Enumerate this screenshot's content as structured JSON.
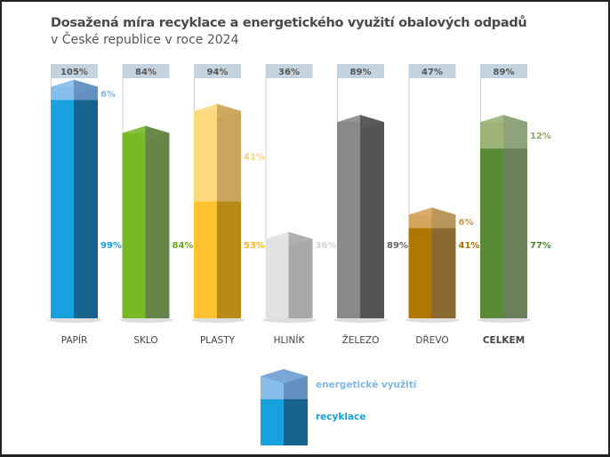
{
  "chart_data": {
    "type": "bar",
    "stacked": true,
    "title": "Dosažená míra recyklace a energetického využití obalových odpadů",
    "subtitle": "v České republice v roce 2024",
    "categories": [
      "PAPÍR",
      "SKLO",
      "PLASTY",
      "HLINÍK",
      "ŽELEZO",
      "DŘEVO",
      "CELKEM"
    ],
    "totals": [
      "105%",
      "84%",
      "94%",
      "36%",
      "89%",
      "47%",
      "89%"
    ],
    "series": [
      {
        "name": "recyklace",
        "values": [
          99,
          84,
          53,
          36,
          89,
          41,
          77
        ]
      },
      {
        "name": "energetické využití",
        "values": [
          6,
          0,
          41,
          0,
          0,
          6,
          12
        ]
      }
    ],
    "colors": [
      {
        "front": "#17a2df",
        "side": "#15638e",
        "efront": "#86bde9",
        "eside": "#6490bf",
        "text": "#1a9ed8",
        "etext": "#7fb6e2"
      },
      {
        "front": "#78b928",
        "side": "#66844a",
        "efront": "#a6cf6e",
        "eside": "#8aa070",
        "text": "#6aa824",
        "etext": "#8fbf55"
      },
      {
        "front": "#fdc32e",
        "side": "#b98a17",
        "efront": "#fed87c",
        "eside": "#c9a45a",
        "text": "#f5b81e",
        "etext": "#f8d27a"
      },
      {
        "front": "#e2e2e2",
        "side": "#a8a8a8",
        "efront": "#eeeeee",
        "eside": "#c0c0c0",
        "text": "#d2d2d2",
        "etext": "#dddddd"
      },
      {
        "front": "#898989",
        "side": "#545454",
        "efront": "#aaaaaa",
        "eside": "#777777",
        "text": "#666666",
        "etext": "#888888"
      },
      {
        "front": "#b07700",
        "side": "#8a6a30",
        "efront": "#d4a55c",
        "eside": "#b8965c",
        "text": "#a87200",
        "etext": "#c9974c"
      },
      {
        "front": "#578b38",
        "side": "#6a7f5a",
        "efront": "#9db276",
        "eside": "#8ea27c",
        "text": "#4f7f2f",
        "etext": "#8fa66a"
      }
    ],
    "ylim": [
      0,
      105
    ]
  },
  "legend": {
    "energy": "energetické využití",
    "recycle": "recyklace",
    "energy_color": "#7fb6e2",
    "recycle_color": "#1a9ed8"
  }
}
